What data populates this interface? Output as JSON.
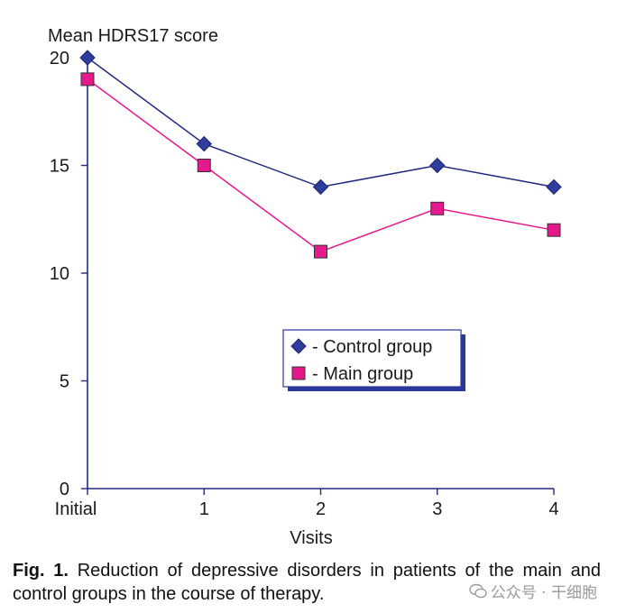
{
  "chart_data": {
    "type": "line",
    "ylabel": "Mean HDRS17 score",
    "xlabel": "Visits",
    "categories": [
      "Initial",
      "1",
      "2",
      "3",
      "4"
    ],
    "ylim": [
      0,
      20
    ],
    "yticks": [
      "0",
      "5",
      "10",
      "15",
      "20"
    ],
    "series": [
      {
        "name": "- Control group",
        "marker": "diamond",
        "color": "#2e3d9e",
        "line_color": "#1f2a80",
        "values": [
          20,
          16,
          14,
          15,
          14
        ]
      },
      {
        "name": "- Main group",
        "marker": "square",
        "color": "#e6198c",
        "line_color": "#e6198c",
        "values": [
          19,
          15,
          11,
          13,
          12
        ]
      }
    ],
    "legend": "center-right"
  },
  "caption": {
    "label": "Fig. 1.",
    "text": " Reduction of depressive disorders in patients of the main and control groups in the course of therapy."
  },
  "watermark": {
    "text": "公众号 · 干细胞"
  }
}
